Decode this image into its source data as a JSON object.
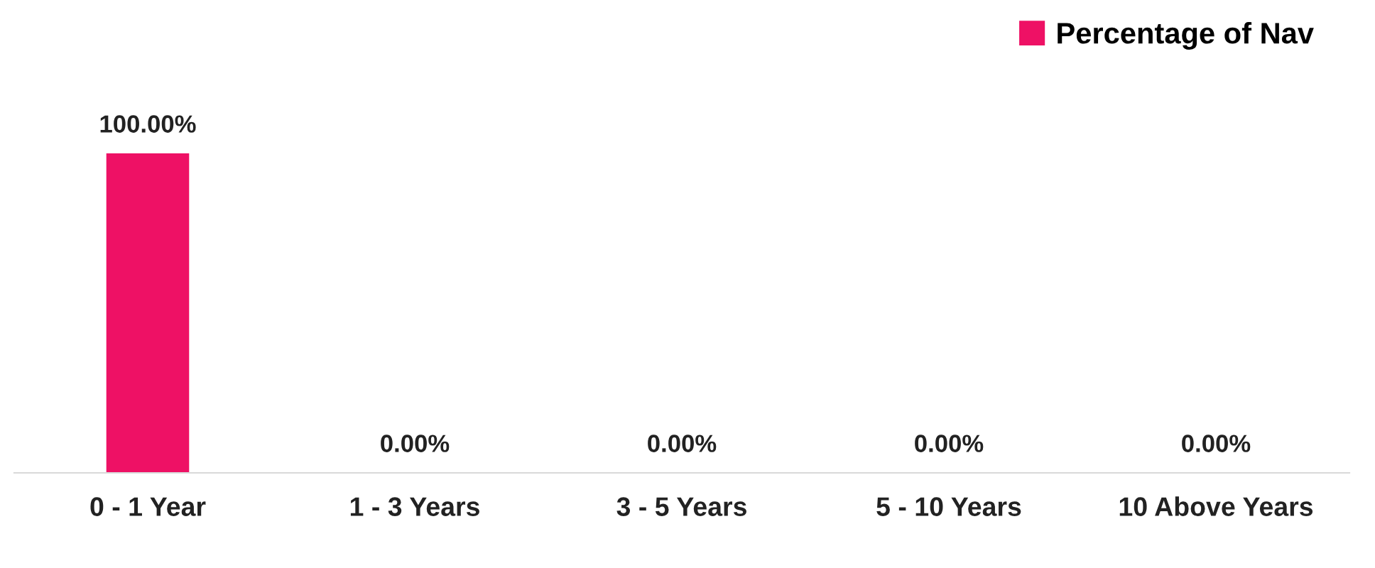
{
  "chart_data": {
    "type": "bar",
    "categories": [
      "0 - 1 Year",
      "1 - 3 Years",
      "3 - 5 Years",
      "5 - 10 Years",
      "10 Above Years"
    ],
    "series": [
      {
        "name": "Percentage of Nav",
        "color": "#ee1165",
        "values": [
          100,
          0,
          0,
          0,
          0
        ],
        "value_labels": [
          "100.00%",
          "0.00%",
          "0.00%",
          "0.00%",
          "0.00%"
        ]
      }
    ],
    "legend": "top right"
  }
}
